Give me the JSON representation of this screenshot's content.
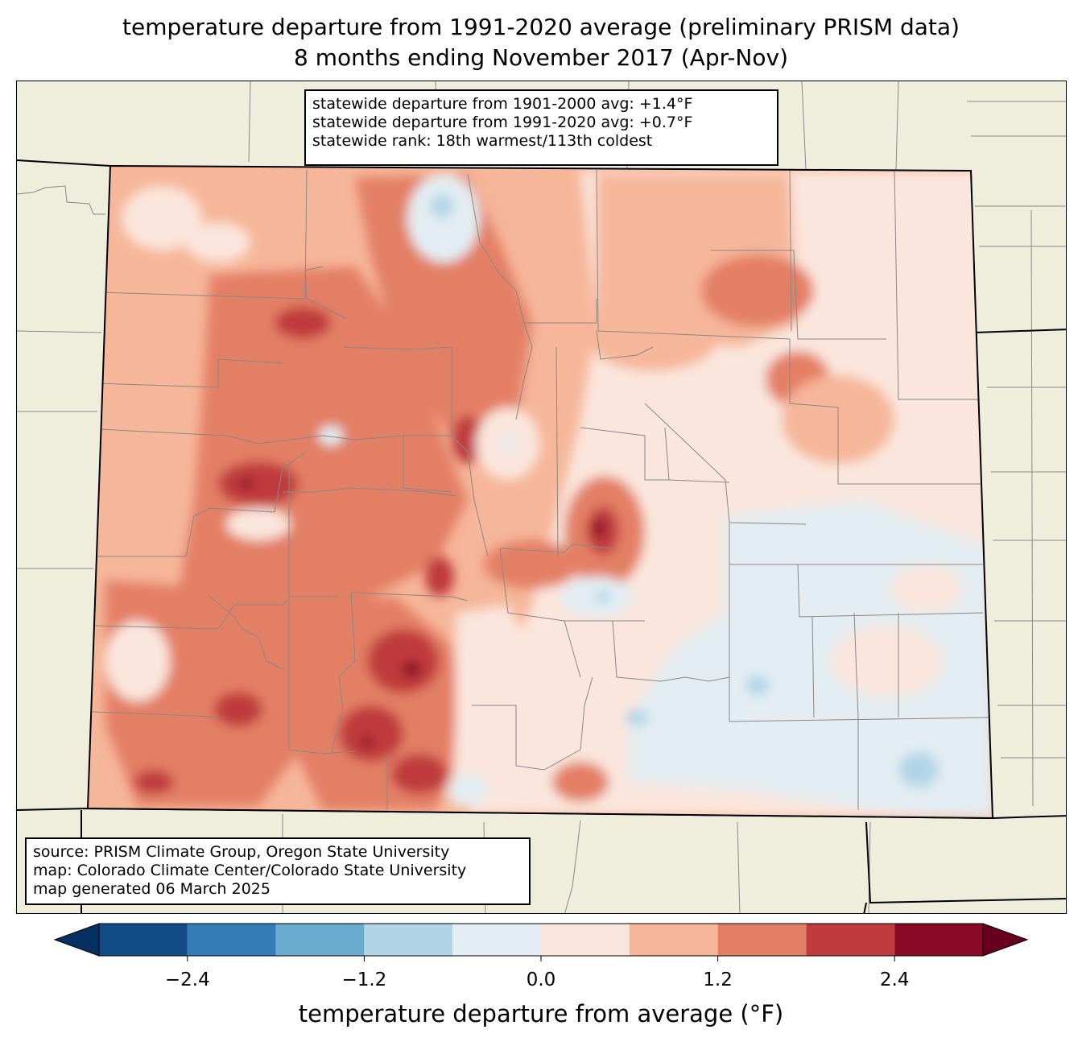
{
  "title": {
    "line1": "temperature departure from 1991-2020 average (preliminary PRISM data)",
    "line2": "8 months ending November 2017 (Apr-Nov)"
  },
  "stats_box": {
    "line1": "statewide departure from 1901-2000 avg: +1.4°F",
    "line2": "statewide departure from 1991-2020 avg: +0.7°F",
    "line3": "statewide rank: 18th warmest/113th coldest"
  },
  "source_box": {
    "line1": "source: PRISM Climate Group, Oregon State University",
    "line2": "map: Colorado Climate Center/Colorado State University",
    "line3": "map generated 06 March 2025"
  },
  "colorbar": {
    "label": "temperature departure from average (°F)",
    "bounds": [
      -3.0,
      -2.4,
      -1.8,
      -1.2,
      -0.6,
      0.0,
      0.6,
      1.2,
      1.8,
      2.4,
      3.0
    ],
    "colors": [
      "#134b87",
      "#327cb8",
      "#6aacd0",
      "#b1d5e7",
      "#e3edf3",
      "#fae6dd",
      "#f6b699",
      "#e37f65",
      "#c03b3e",
      "#880a25"
    ],
    "extend_low_color": "#053061",
    "extend_high_color": "#67001f",
    "ticks": [
      {
        "value": -2.4,
        "label": "−2.4"
      },
      {
        "value": -1.2,
        "label": "−1.2"
      },
      {
        "value": 0.0,
        "label": "0.0"
      },
      {
        "value": 1.2,
        "label": "1.2"
      },
      {
        "value": 2.4,
        "label": "2.4"
      }
    ]
  },
  "map": {
    "land_color": "#efeedc",
    "region": "Colorado"
  }
}
